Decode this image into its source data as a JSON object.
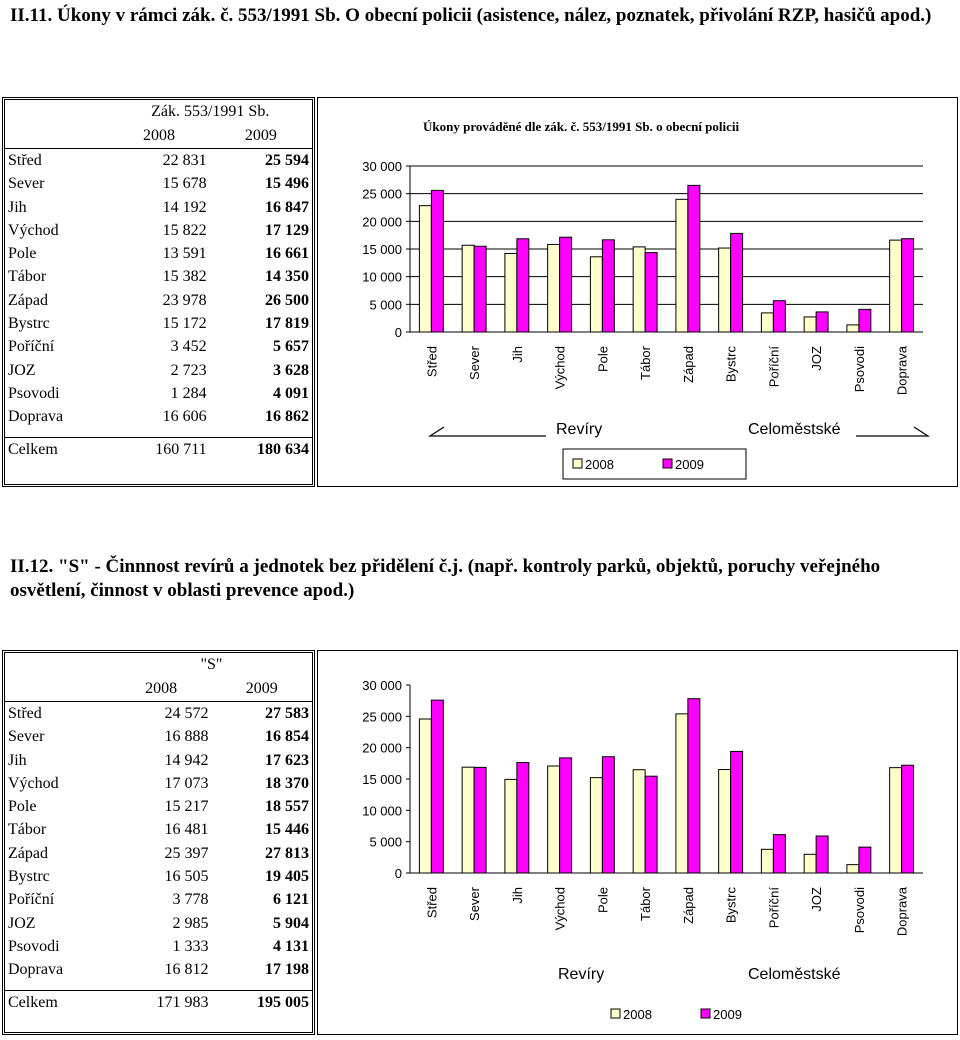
{
  "section1": {
    "heading": "II.11. Úkony v rámci zák. č. 553/1991 Sb. O obecní policii (asistence, nález, poznatek, přivolání RZP, hasičů apod.)",
    "table": {
      "title": "Zák. 553/1991 Sb.",
      "col1": "2008",
      "col2": "2009",
      "rows": [
        {
          "label": "Střed",
          "v2008": "22 831",
          "v2009": "25 594"
        },
        {
          "label": "Sever",
          "v2008": "15 678",
          "v2009": "15 496"
        },
        {
          "label": "Jih",
          "v2008": "14 192",
          "v2009": "16 847"
        },
        {
          "label": "Východ",
          "v2008": "15 822",
          "v2009": "17 129"
        },
        {
          "label": "Pole",
          "v2008": "13 591",
          "v2009": "16 661"
        },
        {
          "label": "Tábor",
          "v2008": "15 382",
          "v2009": "14 350"
        },
        {
          "label": "Západ",
          "v2008": "23 978",
          "v2009": "26 500"
        },
        {
          "label": "Bystrc",
          "v2008": "15 172",
          "v2009": "17 819"
        },
        {
          "label": "Poříční",
          "v2008": "3 452",
          "v2009": "5 657"
        },
        {
          "label": "JOZ",
          "v2008": "2 723",
          "v2009": "3 628"
        },
        {
          "label": "Psovodi",
          "v2008": "1 284",
          "v2009": "4 091"
        },
        {
          "label": "Doprava",
          "v2008": "16 606",
          "v2009": "16 862"
        }
      ],
      "total": {
        "label": "Celkem",
        "v2008": "160 711",
        "v2009": "180 634"
      }
    }
  },
  "section2": {
    "heading": "II.12. \"S\" - Činnnost revírů a jednotek bez přidělení č.j. (např. kontroly parků, objektů, poruchy veřejného osvětlení, činnost v oblasti prevence apod.)",
    "table": {
      "title": "\"S\"",
      "col1": "2008",
      "col2": "2009",
      "rows": [
        {
          "label": "Střed",
          "v2008": "24 572",
          "v2009": "27 583"
        },
        {
          "label": "Sever",
          "v2008": "16 888",
          "v2009": "16 854"
        },
        {
          "label": "Jih",
          "v2008": "14 942",
          "v2009": "17 623"
        },
        {
          "label": "Východ",
          "v2008": "17 073",
          "v2009": "18 370"
        },
        {
          "label": "Pole",
          "v2008": "15 217",
          "v2009": "18 557"
        },
        {
          "label": "Tábor",
          "v2008": "16 481",
          "v2009": "15 446"
        },
        {
          "label": "Západ",
          "v2008": "25 397",
          "v2009": "27 813"
        },
        {
          "label": "Bystrc",
          "v2008": "16 505",
          "v2009": "19 405"
        },
        {
          "label": "Poříční",
          "v2008": "3 778",
          "v2009": "6 121"
        },
        {
          "label": "JOZ",
          "v2008": "2 985",
          "v2009": "5 904"
        },
        {
          "label": "Psovodi",
          "v2008": "1 333",
          "v2009": "4 131"
        },
        {
          "label": "Doprava",
          "v2008": "16 812",
          "v2009": "17 198"
        }
      ],
      "total": {
        "label": "Celkem",
        "v2008": "171 983",
        "v2009": "195 005"
      }
    }
  },
  "chart_data": [
    {
      "type": "bar",
      "title": "Úkony prováděné dle zák. č. 553/1991 Sb. o obecní policii",
      "categories": [
        "Střed",
        "Sever",
        "Jih",
        "Východ",
        "Pole",
        "Tábor",
        "Západ",
        "Bystrc",
        "Poříční",
        "JOZ",
        "Psovodi",
        "Doprava"
      ],
      "series": [
        {
          "name": "2008",
          "color": "#ffffcc",
          "values": [
            22831,
            15678,
            14192,
            15822,
            13591,
            15382,
            23978,
            15172,
            3452,
            2723,
            1284,
            16606
          ]
        },
        {
          "name": "2009",
          "color": "#ff00ff",
          "values": [
            25594,
            15496,
            16847,
            17129,
            16661,
            14350,
            26500,
            17819,
            5657,
            3628,
            4091,
            16862
          ]
        }
      ],
      "ylim": [
        0,
        30000
      ],
      "yticks": [
        "0",
        "5 000",
        "10 000",
        "15 000",
        "20 000",
        "25 000",
        "30 000"
      ],
      "group_labels": [
        "Revíry",
        "Celoměstské"
      ],
      "grid": true,
      "legend": "bottom"
    },
    {
      "type": "bar",
      "title": "",
      "categories": [
        "Střed",
        "Sever",
        "Jih",
        "Východ",
        "Pole",
        "Tábor",
        "Západ",
        "Bystrc",
        "Poříční",
        "JOZ",
        "Psovodi",
        "Doprava"
      ],
      "series": [
        {
          "name": "2008",
          "color": "#ffffcc",
          "values": [
            24572,
            16888,
            14942,
            17073,
            15217,
            16481,
            25397,
            16505,
            3778,
            2985,
            1333,
            16812
          ]
        },
        {
          "name": "2009",
          "color": "#ff00ff",
          "values": [
            27583,
            16854,
            17623,
            18370,
            18557,
            15446,
            27813,
            19405,
            6121,
            5904,
            4131,
            17198
          ]
        }
      ],
      "ylim": [
        0,
        30000
      ],
      "yticks": [
        "0",
        "5 000",
        "10 000",
        "15 000",
        "20 000",
        "25 000",
        "30 000"
      ],
      "group_labels": [
        "Revíry",
        "Celoměstské"
      ],
      "grid": false,
      "legend": "bottom"
    }
  ]
}
